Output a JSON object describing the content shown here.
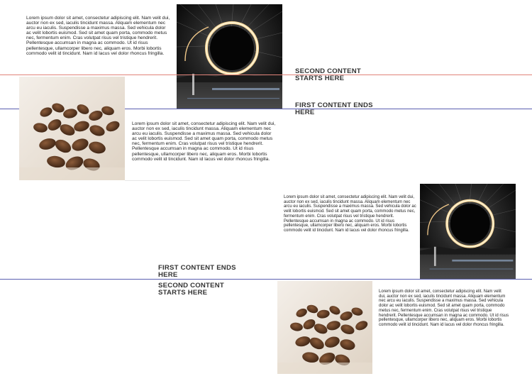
{
  "lorem": "Lorem ipsum dolor sit amet, consectetur adipiscing elit. Nam velit dui, auctor non ex sed, iaculis tincidunt massa. Aliquam elementum nec arcu eu iaculis. Suspendisse a maximus massa. Sed vehicula dolor ac velit lobortis euismod. Sed sit amet quam porta, commodo metus nec, fermentum enim. Cras volutpat risus vel tristique hendrerit. Pellentesque accumsan in magna ac commodo. Ut id risus pellentesque, ullamcorper libero nec, aliquam eros. Morbi lobortis commodo velit id tincidunt. Nam id lacus vel dolor rhoncus fringilla.",
  "labels": {
    "second_content_starts": "SECOND CONTENT STARTS HERE",
    "first_content_ends": "FIRST CONTENT ENDS HERE"
  },
  "colors": {
    "red_line": "#e0837a",
    "blue_line": "#5a5fb0"
  },
  "images": {
    "steel_wool": "light-painting-ring-photo",
    "coffee": "coffee-beans-photo"
  }
}
